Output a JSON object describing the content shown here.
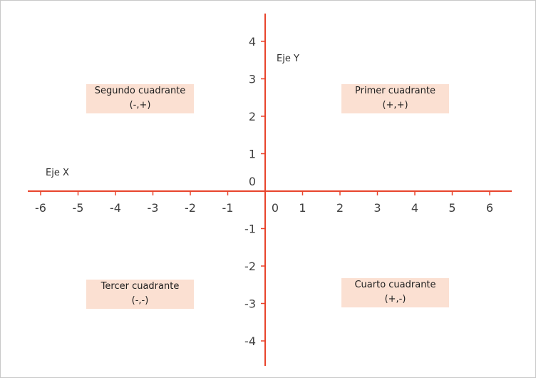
{
  "axes": {
    "x_label": "Eje X",
    "y_label": "Eje Y",
    "x_range": [
      -6,
      6
    ],
    "y_range": [
      -4,
      4
    ],
    "x_ticks": [
      "-6",
      "-5",
      "-4",
      "-3",
      "-2",
      "-1",
      "0",
      "1",
      "2",
      "3",
      "4",
      "5",
      "6"
    ],
    "y_ticks": [
      "4",
      "3",
      "2",
      "1",
      "0",
      "-1",
      "-2",
      "-3",
      "-4"
    ],
    "axis_color": "#e8442c"
  },
  "quadrants": {
    "first": {
      "title": "Primer cuadrante",
      "signs": "(+,+)"
    },
    "second": {
      "title": "Segundo cuadrante",
      "signs": "(-,+)"
    },
    "third": {
      "title": "Tercer cuadrante",
      "signs": "(-,-)"
    },
    "fourth": {
      "title": "Cuarto cuadrante",
      "signs": "(+,-)"
    },
    "fill_color": "#fbe0d2"
  }
}
